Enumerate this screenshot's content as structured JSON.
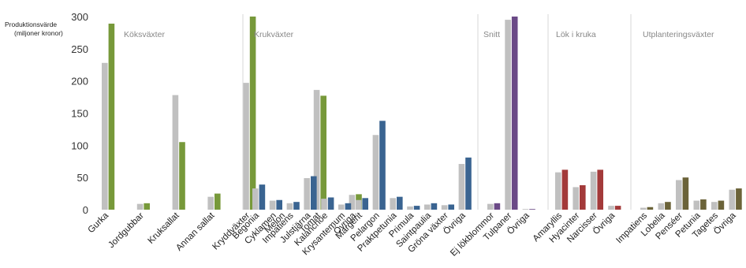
{
  "chart_data": {
    "type": "bar",
    "ylabel_lines": [
      "Produktionsvärde",
      "(miljoner kronor)"
    ],
    "ylim": [
      0,
      300
    ],
    "yticks": [
      0,
      50,
      100,
      150,
      200,
      250,
      300
    ],
    "grid": false,
    "series_colors_note": "grey = first year, colored = second year",
    "grey_color": "#c0c0c0",
    "groups": [
      {
        "name": "Köksväxter",
        "color": "#77993a",
        "categories": [
          "Gurka",
          "Jordgubbar",
          "Kruksallat",
          "Annan sallat",
          "Kryddväxter",
          "Melon",
          "Tomat",
          "Övriga"
        ],
        "grey": [
          228,
          9,
          178,
          20,
          197,
          0,
          186,
          23
        ],
        "colored": [
          289,
          10,
          105,
          25,
          300,
          0,
          177,
          24
        ]
      },
      {
        "name": "Krukväxter",
        "color": "#3a6491",
        "categories": [
          "Begonia",
          "Cyklamen",
          "Impatiens",
          "Julstjärna",
          "Kalanchoe",
          "Krysantemum",
          "Margerit",
          "Pelargon",
          "Praktpetunia",
          "Primula",
          "Saintpaulia",
          "Gröna växter",
          "Övriga"
        ],
        "grey": [
          33,
          14,
          10,
          49,
          17,
          8,
          15,
          116,
          18,
          5,
          8,
          7,
          71
        ],
        "colored": [
          39,
          15,
          12,
          52,
          19,
          10,
          18,
          138,
          20,
          6,
          10,
          8,
          81
        ]
      },
      {
        "name": "Snitt",
        "color": "#6b4a87",
        "categories": [
          "Ej lökblommor",
          "Tulpaner",
          "Övriga"
        ],
        "grey": [
          9,
          295,
          1
        ],
        "colored": [
          10,
          301,
          1
        ]
      },
      {
        "name": "Lök i kruka",
        "color": "#a33a3a",
        "categories": [
          "Amaryllis",
          "Hyacinter",
          "Narcisser",
          "Övriga"
        ],
        "grey": [
          58,
          35,
          59,
          6
        ],
        "colored": [
          62,
          38,
          62,
          6
        ]
      },
      {
        "name": "Utplanteringsväxter",
        "color": "#6b6339",
        "categories": [
          "Impatiens",
          "Lobelia",
          "Penséer",
          "Petunia",
          "Tagetes",
          "Övriga"
        ],
        "grey": [
          3,
          10,
          46,
          14,
          12,
          31
        ],
        "colored": [
          4,
          12,
          50,
          16,
          14,
          33
        ]
      }
    ]
  }
}
